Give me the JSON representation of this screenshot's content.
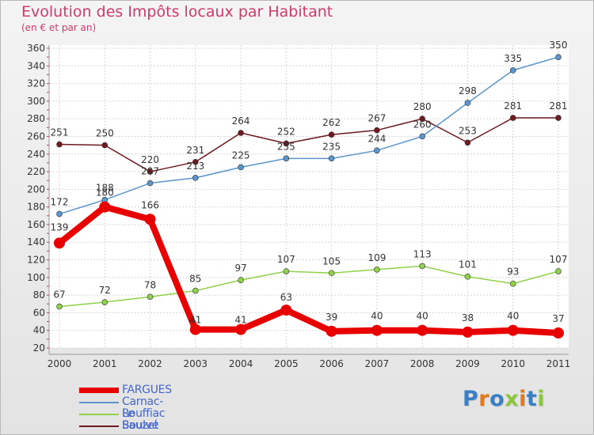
{
  "title": "Evolution des Impôts locaux par Habitant",
  "subtitle": "(en € et par an)",
  "chart_data": {
    "type": "line",
    "title": "Evolution des Impôts locaux par Habitant",
    "subtitle": "(en € et par an)",
    "x": [
      "2000",
      "2001",
      "2002",
      "2003",
      "2004",
      "2005",
      "2006",
      "2007",
      "2008",
      "2009",
      "2010",
      "2011"
    ],
    "ylim": [
      20,
      360
    ],
    "yticks": [
      20,
      40,
      60,
      80,
      100,
      120,
      140,
      160,
      180,
      200,
      220,
      240,
      260,
      280,
      300,
      320,
      340,
      360
    ],
    "grid": true,
    "legend_position": "bottom-left",
    "series": [
      {
        "name": "FARGUES",
        "color": "#e80000",
        "values": [
          139,
          180,
          166,
          41,
          41,
          63,
          39,
          40,
          40,
          38,
          40,
          37
        ]
      },
      {
        "name": "Carnac-Rouffiac",
        "color": "#5b95cc",
        "values": [
          172,
          188,
          207,
          213,
          225,
          235,
          235,
          244,
          260,
          298,
          335,
          350
        ]
      },
      {
        "name": "Le Boulvé",
        "color": "#8fd14a",
        "values": [
          67,
          72,
          78,
          85,
          97,
          107,
          105,
          109,
          113,
          101,
          93,
          107
        ]
      },
      {
        "name": "Sauzet",
        "color": "#6e1a20",
        "values": [
          251,
          250,
          220,
          231,
          264,
          252,
          262,
          267,
          280,
          253,
          281,
          281
        ]
      }
    ]
  },
  "legend": {
    "items": [
      {
        "label": "FARGUES",
        "color": "#e80000"
      },
      {
        "label": "Carnac-Rouffiac",
        "color": "#5b95cc"
      },
      {
        "label": "Le Boulvé",
        "color": "#8fd14a"
      },
      {
        "label": "Sauzet",
        "color": "#6e1a20"
      }
    ]
  },
  "logo": {
    "text": "Proxiti"
  }
}
